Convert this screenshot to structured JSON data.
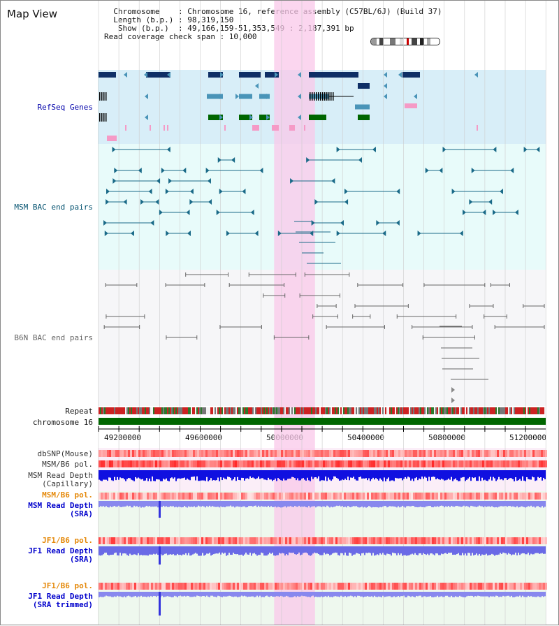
{
  "title": "Map View",
  "info_lines": [
    "  Chromosome    : Chromosome 16, reference assembly (C57BL/6J) (Build 37)",
    "  Length (b.p.) : 98,319,150",
    "   Show (b.p.)  : 49,166,159-51,353,549 : 2,187,391 bp",
    "Read coverage check span : 10,000"
  ],
  "tracks": {
    "refseq": {
      "label": "RefSeq Genes",
      "color": "#00008b"
    },
    "msm_bac": {
      "label": "MSM BAC end pairs",
      "color": "#004c6d"
    },
    "b6n_bac": {
      "label": "B6N BAC end pairs",
      "color": "#555555"
    },
    "repeat": {
      "label": "Repeat"
    },
    "chromosome": {
      "label": "chromosome 16"
    },
    "dbsnp": {
      "label": "dbSNP(Mouse)"
    },
    "msm_b6_pol_1": {
      "label": "MSM/B6 pol."
    },
    "msm_depth_cap": {
      "label_1": "MSM Read Depth",
      "label_2": "(Capillary)"
    },
    "msm_b6_pol_2": {
      "label": "MSM/B6 pol.",
      "color": "#e5890a"
    },
    "msm_depth_sra": {
      "label_1": "MSM Read Depth",
      "label_2": "(SRA)",
      "color": "#0000cc"
    },
    "jf1_b6_pol_1": {
      "label": "JF1/B6 pol.",
      "color": "#e5890a"
    },
    "jf1_depth_sra": {
      "label_1": "JF1 Read Depth",
      "label_2": "(SRA)",
      "color": "#0000cc"
    },
    "jf1_b6_pol_2": {
      "label": "JF1/B6 pol.",
      "color": "#e5890a"
    },
    "jf1_depth_trim": {
      "label_1": "JF1 Read Depth",
      "label_2": "(SRA trimmed)",
      "color": "#0000cc"
    }
  },
  "axis": {
    "ticks": [
      "49200000",
      "49600000",
      "50000000",
      "50400000",
      "50800000",
      "51200000"
    ]
  },
  "highlight_region_bp": [
    50025000,
    50225000
  ],
  "colors": {
    "refseq_bg": "#d8eef8",
    "msm_bg": "#e8fbfa",
    "b6n_bg": "#f6f6f8",
    "highlight": "#f9c8ea",
    "chrom_bar": "#006600",
    "dark_blue": "#0f2f66",
    "mid_blue": "#4a94b8",
    "green": "#006600",
    "pink": "#f59ac6"
  }
}
